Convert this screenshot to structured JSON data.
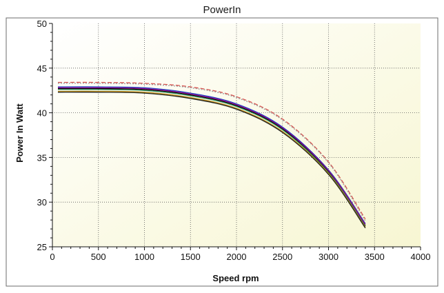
{
  "chart_data": {
    "type": "line",
    "title": "PowerIn",
    "xlabel": "Speed rpm",
    "ylabel": "Power In Watt",
    "xlim": [
      0,
      4000
    ],
    "ylim": [
      25,
      50
    ],
    "xticks": [
      "0",
      "500",
      "1000",
      "1500",
      "2000",
      "2500",
      "3000",
      "3500",
      "4000"
    ],
    "yticks": [
      "25",
      "30",
      "35",
      "40",
      "45",
      "50"
    ],
    "grid": true,
    "legend": "none",
    "background_gradient": [
      "#ffffff",
      "#f7f6d2"
    ],
    "series": [
      {
        "color": "#d9534f",
        "dash": "6,3",
        "x": [
          60,
          500,
          1000,
          1500,
          2000,
          2500,
          3000,
          3400
        ],
        "y": [
          43.4,
          43.4,
          43.3,
          42.9,
          41.8,
          39.3,
          34.5,
          28.1
        ]
      },
      {
        "color": "#999999",
        "dash": "2,2",
        "x": [
          60,
          500,
          1000,
          1500,
          2000,
          2500,
          3000,
          3400
        ],
        "y": [
          43.3,
          43.3,
          43.2,
          42.8,
          41.7,
          39.2,
          34.4,
          27.9
        ]
      },
      {
        "color": "#1f3fbf",
        "dash": "",
        "x": [
          60,
          500,
          1000,
          1500,
          2000,
          2500,
          3000,
          3400
        ],
        "y": [
          42.9,
          42.9,
          42.8,
          42.2,
          41.0,
          38.4,
          33.6,
          27.6
        ]
      },
      {
        "color": "#000000",
        "dash": "",
        "x": [
          60,
          500,
          1000,
          1500,
          2000,
          2500,
          3000,
          3400
        ],
        "y": [
          42.7,
          42.7,
          42.6,
          42.0,
          40.8,
          38.2,
          33.4,
          27.3
        ]
      },
      {
        "color": "#2e8b57",
        "dash": "",
        "x": [
          60,
          500,
          1000,
          1500,
          2000,
          2500,
          3000,
          3400
        ],
        "y": [
          42.6,
          42.6,
          42.5,
          41.9,
          40.7,
          38.1,
          33.3,
          27.4
        ]
      },
      {
        "color": "#8b008b",
        "dash": "",
        "x": [
          60,
          500,
          1000,
          1500,
          2000,
          2500,
          3000,
          3400
        ],
        "y": [
          42.8,
          42.8,
          42.7,
          42.1,
          40.9,
          38.3,
          33.5,
          27.5
        ]
      },
      {
        "color": "#b8860b",
        "dash": "",
        "x": [
          60,
          500,
          1000,
          1500,
          2000,
          2500,
          3000,
          3400
        ],
        "y": [
          42.4,
          42.4,
          42.3,
          41.7,
          40.5,
          37.9,
          33.2,
          27.2
        ]
      },
      {
        "color": "#222222",
        "dash": "",
        "x": [
          60,
          500,
          1000,
          1500,
          2000,
          2500,
          3000,
          3400
        ],
        "y": [
          42.3,
          42.3,
          42.2,
          41.6,
          40.4,
          37.8,
          33.1,
          27.1
        ]
      }
    ]
  }
}
